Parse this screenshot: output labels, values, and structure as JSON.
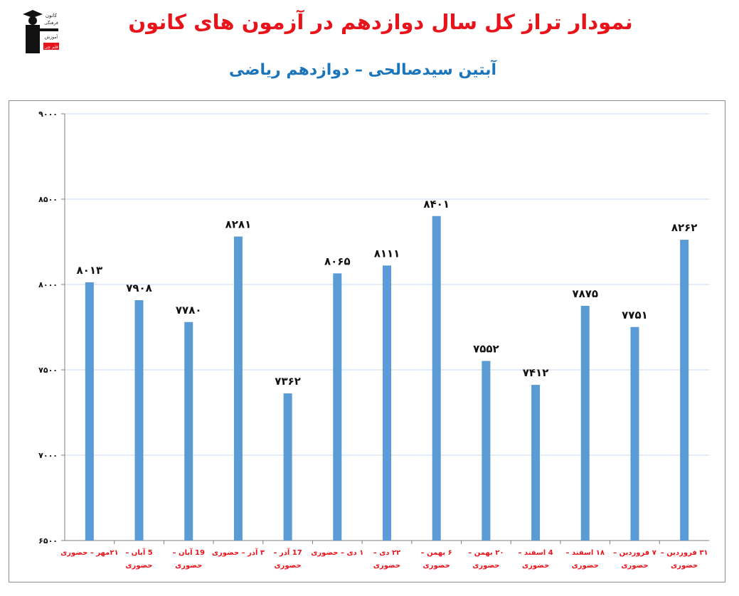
{
  "header": {
    "title": "نمودار تراز کل سال دوازدهم در آزمون های کانون",
    "subtitle": "آبتین سیدصالحی – دوازدهم ریاضی",
    "logo_text": [
      "کانون",
      "فرهنگی",
      "آموزش",
      "قلم چی"
    ]
  },
  "colors": {
    "title": "#e8141b",
    "subtitle": "#1b75bb",
    "bar": "#5b9bd5",
    "category_label": "#e8141b",
    "gridline": "#c6d9f1"
  },
  "chart_data": {
    "type": "bar",
    "title": "",
    "xlabel": "",
    "ylabel": "",
    "ylim": [
      6500,
      9000
    ],
    "yticks": [
      6500,
      7000,
      7500,
      8000,
      8500,
      9000
    ],
    "ytick_labels": [
      "۶۵۰۰",
      "۷۰۰۰",
      "۷۵۰۰",
      "۸۰۰۰",
      "۸۵۰۰",
      "۹۰۰۰"
    ],
    "grid": true,
    "legend": "none",
    "categories": [
      [
        "۲۱مهر – حضوری"
      ],
      [
        "5 آبان –",
        "حضوری"
      ],
      [
        "19 آبان –",
        "حضوری"
      ],
      [
        "۳ آذر – حضوری"
      ],
      [
        "17 آذر –",
        "حضوری"
      ],
      [
        "۱ دی – حضوری"
      ],
      [
        "۲۲ دی –",
        "حضوری"
      ],
      [
        "۶ بهمن –",
        "حضوری"
      ],
      [
        "۲۰ بهمن –",
        "حضوری"
      ],
      [
        "4 اسفند –",
        "حضوری"
      ],
      [
        "۱۸ اسفند –",
        "حضوری"
      ],
      [
        "۷ فروردین –",
        "حضوری"
      ],
      [
        "۳۱ فروردین –",
        "حضوری"
      ]
    ],
    "values": [
      8013,
      7908,
      7780,
      8281,
      7362,
      8065,
      8111,
      8401,
      7552,
      7412,
      7875,
      7751,
      8262
    ],
    "data_labels": [
      "۸۰۱۳",
      "۷۹۰۸",
      "۷۷۸۰",
      "۸۲۸۱",
      "۷۳۶۲",
      "۸۰۶۵",
      "۸۱۱۱",
      "۸۴۰۱",
      "۷۵۵۲",
      "۷۴۱۲",
      "۷۸۷۵",
      "۷۷۵۱",
      "۸۲۶۲"
    ]
  }
}
